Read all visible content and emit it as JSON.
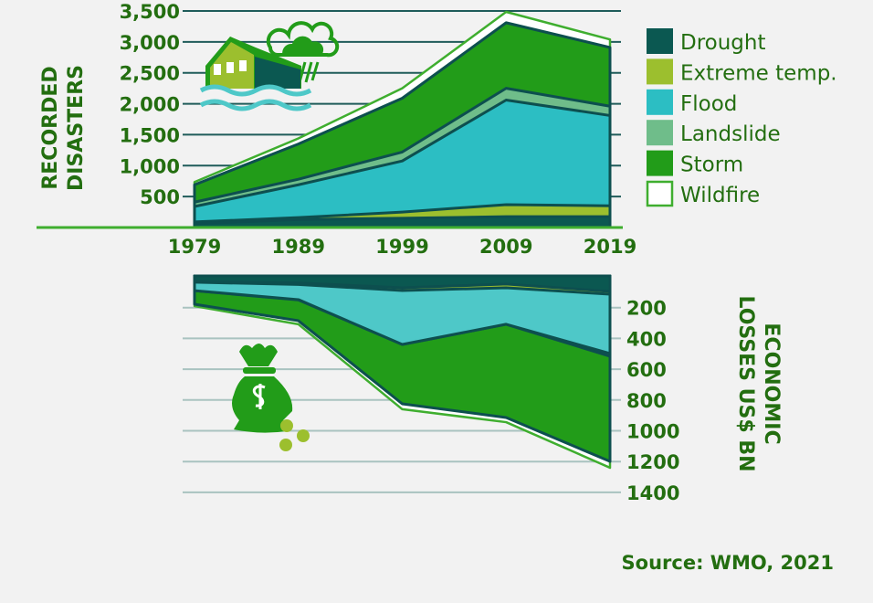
{
  "colors": {
    "Drought": "#0b5851",
    "Extreme temp.": "#9cbf2e",
    "Flood": "#2cbec3",
    "Flood_losses": "#4ec8c8",
    "Landslide": "#6fbd8a",
    "Storm": "#229c19",
    "Wildfire": "#ffffff",
    "Wildfire_outline": "#3fae2f",
    "text": "#236e10",
    "outline": "#0d4f4f"
  },
  "legend": {
    "placement": "right",
    "items": [
      "Drought",
      "Extreme temp.",
      "Flood",
      "Landslide",
      "Storm",
      "Wildfire"
    ]
  },
  "icons": [
    "flooded-house-storm-icon",
    "money-bag-icon"
  ],
  "source": "Source: WMO, 2021",
  "chart_data": [
    {
      "type": "area",
      "stacked": true,
      "ylabel": [
        "RECORDED",
        "DISASTERS"
      ],
      "categories": [
        "1979",
        "1989",
        "1999",
        "2009",
        "2019"
      ],
      "yticks": [
        "500",
        "1,000",
        "1,500",
        "2,000",
        "2,500",
        "3,000",
        "3,500"
      ],
      "ylim": [
        0,
        3500
      ],
      "grid": true,
      "series": [
        {
          "name": "Drought",
          "values": [
            60,
            130,
            150,
            175,
            175
          ]
        },
        {
          "name": "Extreme temp.",
          "values": [
            30,
            30,
            100,
            195,
            175
          ]
        },
        {
          "name": "Flood",
          "values": [
            250,
            530,
            825,
            1690,
            1460
          ]
        },
        {
          "name": "Landslide",
          "values": [
            70,
            90,
            145,
            190,
            150
          ]
        },
        {
          "name": "Storm",
          "values": [
            280,
            570,
            870,
            1060,
            950
          ]
        },
        {
          "name": "Wildfire",
          "values": [
            45,
            90,
            160,
            175,
            130
          ]
        }
      ]
    },
    {
      "type": "area",
      "stacked": true,
      "inverted_y": true,
      "ylabel": [
        "ECONOMIC",
        "LOSSES US$ BN"
      ],
      "categories": [
        "1979",
        "1989",
        "1999",
        "2009",
        "2019"
      ],
      "yticks": [
        "200",
        "400",
        "600",
        "800",
        "1000",
        "1200",
        "1400"
      ],
      "ylim": [
        0,
        1400
      ],
      "grid": true,
      "series": [
        {
          "name": "Drought",
          "values": [
            30,
            40,
            71,
            47,
            95
          ]
        },
        {
          "name": "Extreme temp.",
          "values": [
            5,
            10,
            18,
            24,
            18
          ]
        },
        {
          "name": "Flood",
          "values": [
            55,
            98,
            350,
            237,
            385
          ]
        },
        {
          "name": "Landslide",
          "values": [
            0,
            2,
            0,
            0,
            18
          ]
        },
        {
          "name": "Storm",
          "values": [
            88,
            135,
            386,
            606,
            683
          ]
        },
        {
          "name": "Wildfire",
          "values": [
            12,
            23,
            35,
            30,
            41
          ]
        }
      ]
    }
  ]
}
